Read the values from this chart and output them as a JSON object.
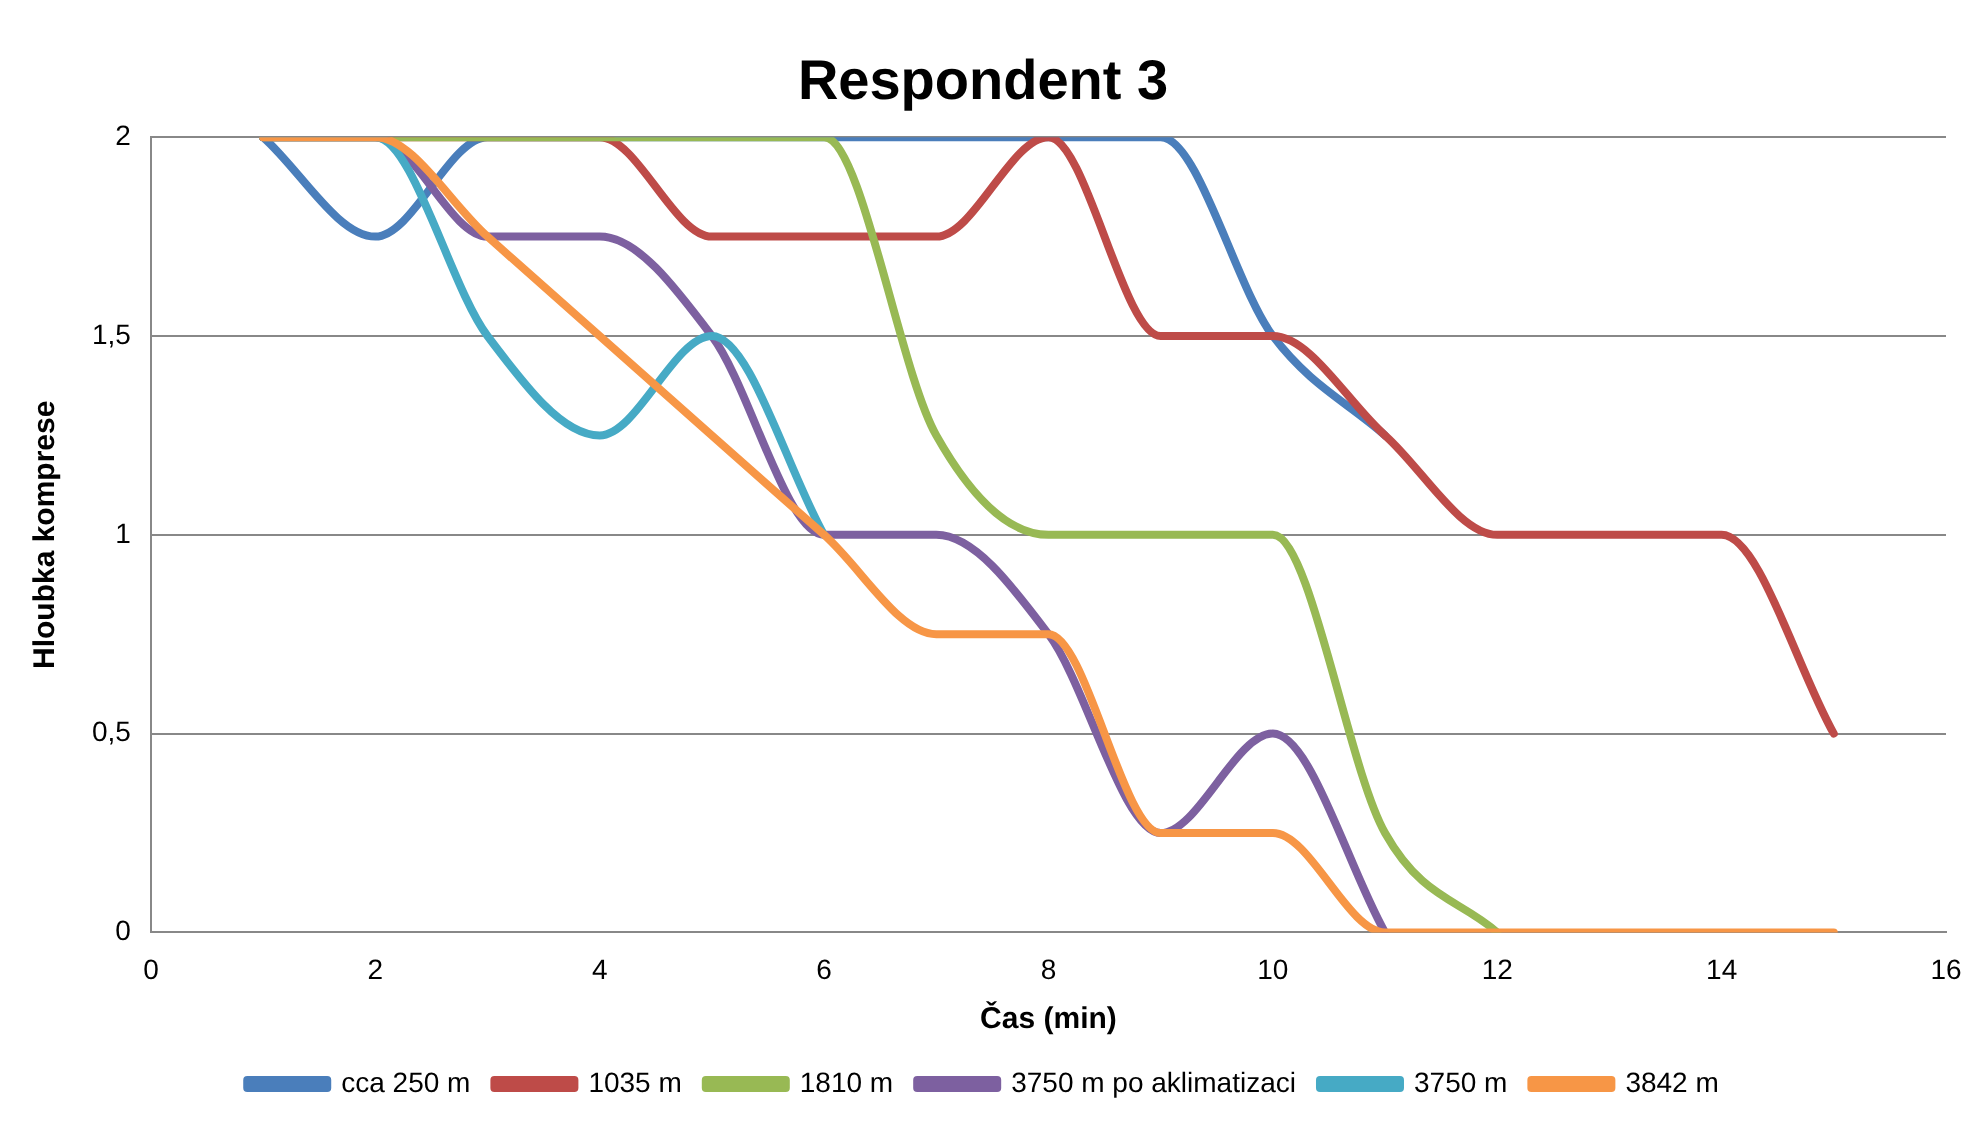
{
  "chart_data": {
    "type": "line",
    "title": "Respondent 3",
    "xlabel": "Čas (min)",
    "ylabel": "Hloubka komprese",
    "x": [
      1,
      2,
      3,
      4,
      5,
      6,
      7,
      8,
      9,
      10,
      11,
      12,
      13,
      14,
      15
    ],
    "series": [
      {
        "name": "cca 250 m",
        "color": "#4a7ebb",
        "values": [
          2,
          1.75,
          2,
          2,
          2,
          2,
          2,
          2,
          2,
          1.5,
          1.25,
          null,
          null,
          null,
          null
        ]
      },
      {
        "name": "1035 m",
        "color": "#be4b48",
        "values": [
          2,
          2,
          2,
          2,
          1.75,
          1.75,
          1.75,
          2,
          1.5,
          1.5,
          1.25,
          1,
          1,
          1,
          0.5
        ]
      },
      {
        "name": "1810 m",
        "color": "#98b954",
        "values": [
          2,
          2,
          2,
          2,
          2,
          2,
          1.25,
          1,
          1,
          1,
          0.25,
          0,
          null,
          null,
          null
        ]
      },
      {
        "name": "3750 m po aklimatizaci",
        "color": "#7d60a0",
        "values": [
          2,
          2,
          1.75,
          1.75,
          1.5,
          1,
          1,
          0.75,
          0.25,
          0.5,
          0,
          null,
          null,
          null,
          null
        ]
      },
      {
        "name": "3750 m",
        "color": "#46aac5",
        "values": [
          2,
          2,
          1.5,
          1.25,
          1.5,
          1,
          null,
          null,
          null,
          null,
          null,
          null,
          null,
          null,
          null
        ]
      },
      {
        "name": "3842 m",
        "color": "#f79646",
        "values": [
          2,
          2,
          1.75,
          1.5,
          1.25,
          1,
          0.75,
          0.75,
          0.25,
          0.25,
          0,
          0,
          0,
          0,
          0
        ]
      }
    ],
    "xlim": [
      0,
      16
    ],
    "xticks": [
      0,
      2,
      4,
      6,
      8,
      10,
      12,
      14,
      16
    ],
    "ylim": [
      0,
      2
    ],
    "yticks": [
      0,
      {
        "value": 0.5,
        "label": "0,5"
      },
      1,
      {
        "value": 1.5,
        "label": "1,5"
      },
      2
    ],
    "grid": "y",
    "legend": "bottom",
    "marker": "none",
    "line_style": "solid"
  }
}
